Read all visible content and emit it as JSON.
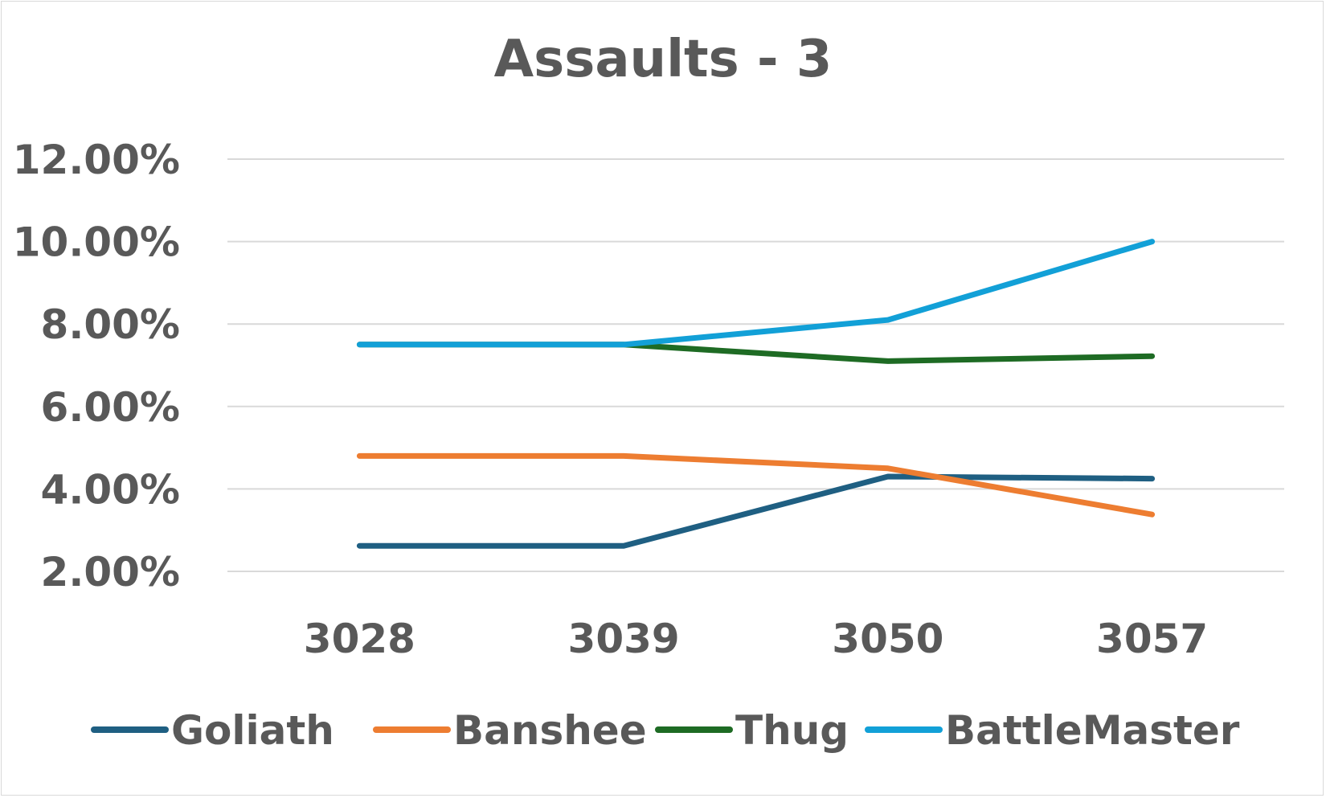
{
  "chart_data": {
    "type": "line",
    "title": "Assaults - 3",
    "categories": [
      "3028",
      "3039",
      "3050",
      "3057"
    ],
    "ylim": [
      2,
      12
    ],
    "yticks": [
      2,
      4,
      6,
      8,
      10,
      12
    ],
    "ytick_labels": [
      "2.00%",
      "4.00%",
      "6.00%",
      "8.00%",
      "10.00%",
      "12.00%"
    ],
    "grid": true,
    "legend_position": "bottom",
    "series": [
      {
        "name": "Goliath",
        "color": "#1f5f82",
        "values": [
          2.62,
          2.62,
          4.3,
          4.25
        ]
      },
      {
        "name": "Banshee",
        "color": "#ed7d31",
        "values": [
          4.8,
          4.8,
          4.5,
          3.38
        ]
      },
      {
        "name": "Thug",
        "color": "#1e6b24",
        "values": [
          7.5,
          7.5,
          7.1,
          7.22
        ]
      },
      {
        "name": "BattleMaster",
        "color": "#12a0d7",
        "values": [
          7.5,
          7.5,
          8.1,
          10.0
        ]
      }
    ]
  }
}
